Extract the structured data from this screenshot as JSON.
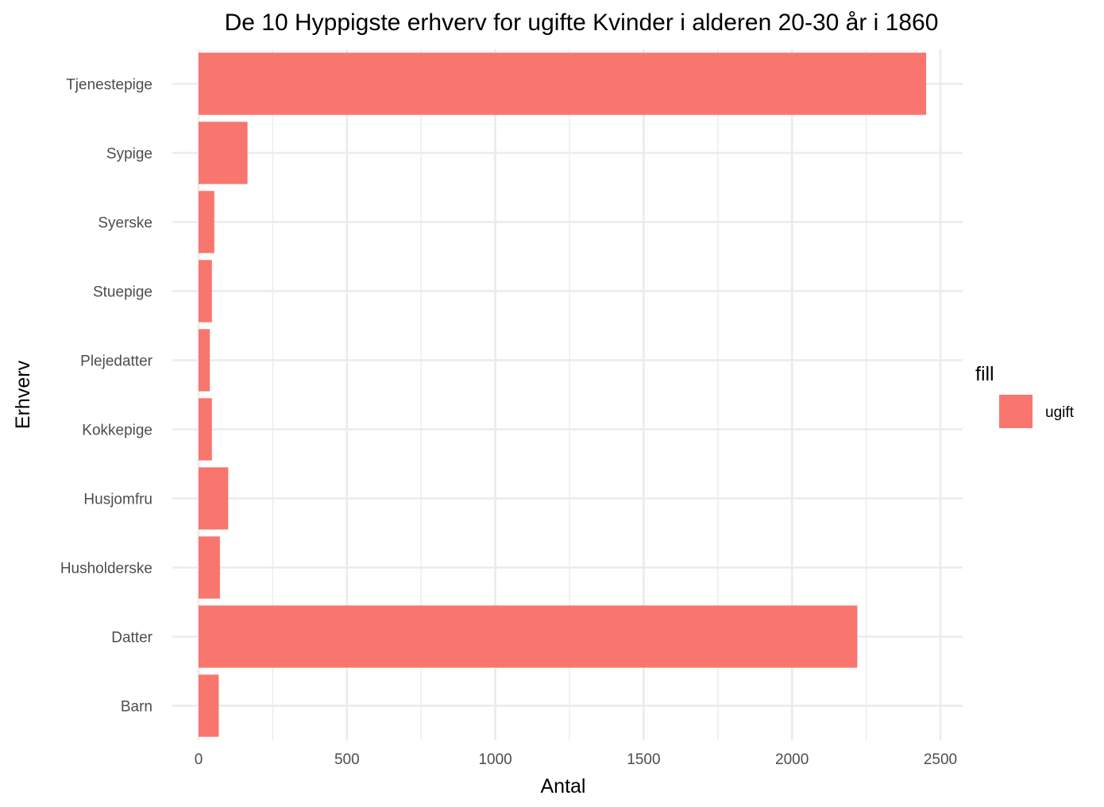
{
  "chart_data": {
    "type": "bar",
    "orientation": "horizontal",
    "title": "De 10 Hyppigste erhverv for ugifte Kvinder i alderen 20-30 år i 1860",
    "xlabel": "Antal",
    "ylabel": "Erhverv",
    "categories": [
      "Tjenestepige",
      "Sypige",
      "Syerske",
      "Stuepige",
      "Plejedatter",
      "Kokkepige",
      "Husjomfru",
      "Husholderske",
      "Datter",
      "Barn"
    ],
    "series": [
      {
        "name": "ugift",
        "color": "#F8766D",
        "values": [
          2452,
          165,
          53,
          45,
          38,
          45,
          100,
          72,
          2220,
          68
        ]
      }
    ],
    "xlim": [
      0,
      2570
    ],
    "xticks": [
      0,
      500,
      1000,
      1500,
      2000,
      2500
    ],
    "xtick_labels": [
      "0",
      "500",
      "1000",
      "1500",
      "2000",
      "2500"
    ],
    "grid": true,
    "legend": {
      "title": "fill",
      "placement": "right"
    }
  }
}
